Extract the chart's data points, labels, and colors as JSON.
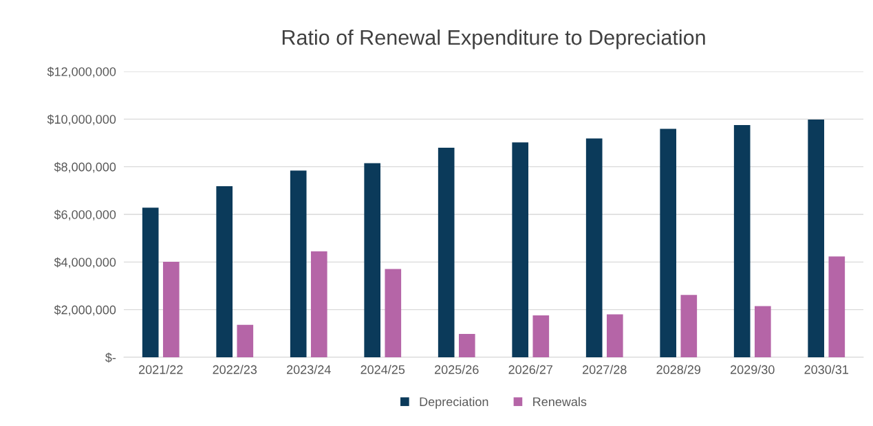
{
  "chart_data": {
    "type": "bar",
    "title": "Ratio of Renewal Expenditure to Depreciation",
    "categories": [
      "2021/22",
      "2022/23",
      "2023/24",
      "2024/25",
      "2025/26",
      "2026/27",
      "2027/28",
      "2028/29",
      "2029/30",
      "2030/31"
    ],
    "series": [
      {
        "name": "Depreciation",
        "color": "#0b3a5a",
        "values": [
          6280000,
          7180000,
          7840000,
          8150000,
          8800000,
          9020000,
          9190000,
          9590000,
          9750000,
          9980000
        ]
      },
      {
        "name": "Renewals",
        "color": "#b565a7",
        "values": [
          4010000,
          1360000,
          4450000,
          3710000,
          980000,
          1760000,
          1800000,
          2620000,
          2150000,
          4230000
        ]
      }
    ],
    "ylim": [
      0,
      12000000
    ],
    "yticks": [
      {
        "value": 0,
        "label": "$-"
      },
      {
        "value": 2000000,
        "label": "$2,000,000"
      },
      {
        "value": 4000000,
        "label": "$4,000,000"
      },
      {
        "value": 6000000,
        "label": "$6,000,000"
      },
      {
        "value": 8000000,
        "label": "$8,000,000"
      },
      {
        "value": 10000000,
        "label": "$10,000,000"
      },
      {
        "value": 12000000,
        "label": "$12,000,000"
      }
    ],
    "grid": "y",
    "legend": "bottom"
  }
}
